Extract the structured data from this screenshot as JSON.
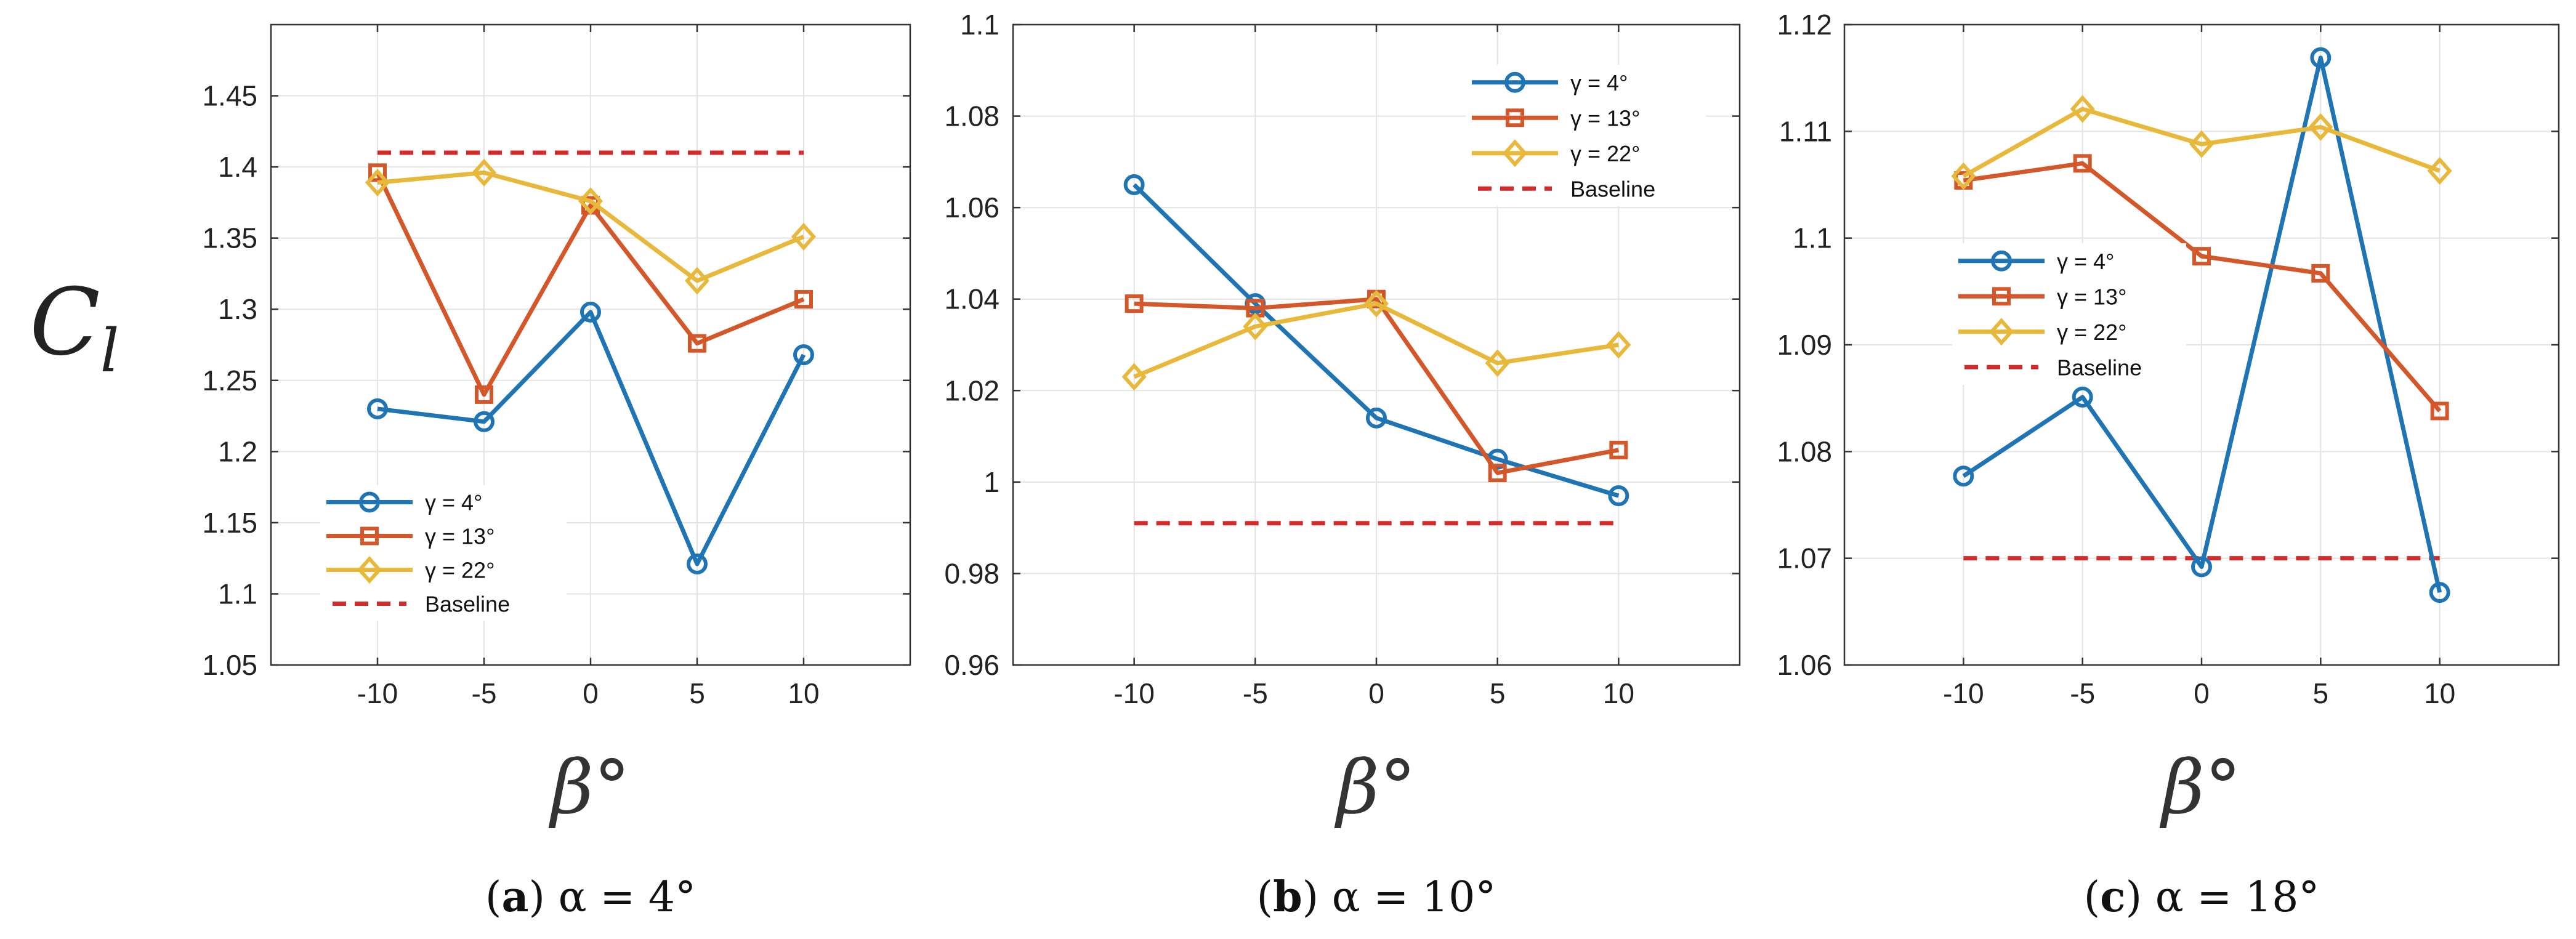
{
  "figure": {
    "ylabel_main": "C",
    "ylabel_sub": "l",
    "xlabel": "β°"
  },
  "colors": {
    "blue": "#1f74b4",
    "orange": "#d4572a",
    "yellow": "#e8b83a",
    "red": "#d42a2a"
  },
  "chart_data": [
    {
      "type": "line",
      "caption_letter": "a",
      "caption_text": "α = 4°",
      "categories": [
        "-10",
        "-5",
        "0",
        "5",
        "10"
      ],
      "x": [
        -10,
        -5,
        0,
        5,
        10
      ],
      "xlim": [
        -15,
        15
      ],
      "ylim": [
        1.05,
        1.5
      ],
      "yticks": [
        1.05,
        1.1,
        1.15,
        1.2,
        1.25,
        1.3,
        1.35,
        1.4,
        1.45
      ],
      "ytick_labels": [
        "1.05",
        "1.1",
        "1.15",
        "1.2",
        "1.25",
        "1.3",
        "1.35",
        "1.4",
        "1.45"
      ],
      "grid": true,
      "legend_placement": "bottom-left",
      "series": [
        {
          "name": "γ = 4°",
          "marker": "circle",
          "color": "#1f74b4",
          "values": [
            1.23,
            1.221,
            1.298,
            1.121,
            1.268
          ]
        },
        {
          "name": "γ = 13°",
          "marker": "square",
          "color": "#d4572a",
          "values": [
            1.396,
            1.24,
            1.373,
            1.276,
            1.307
          ]
        },
        {
          "name": "γ = 22°",
          "marker": "diamond",
          "color": "#e8b83a",
          "values": [
            1.389,
            1.396,
            1.376,
            1.32,
            1.351
          ]
        }
      ],
      "baseline": {
        "name": "Baseline",
        "color": "#d42a2a",
        "value": 1.41
      }
    },
    {
      "type": "line",
      "caption_letter": "b",
      "caption_text": "α  = 10°",
      "categories": [
        "-10",
        "-5",
        "0",
        "5",
        "10"
      ],
      "x": [
        -10,
        -5,
        0,
        5,
        10
      ],
      "xlim": [
        -15,
        15
      ],
      "ylim": [
        0.96,
        1.1
      ],
      "yticks": [
        0.96,
        0.98,
        1.0,
        1.02,
        1.04,
        1.06,
        1.08,
        1.1
      ],
      "ytick_labels": [
        "0.96",
        "0.98",
        "1",
        "1.02",
        "1.04",
        "1.06",
        "1.08",
        "1.1"
      ],
      "grid": true,
      "legend_placement": "top-right",
      "series": [
        {
          "name": "γ = 4°",
          "marker": "circle",
          "color": "#1f74b4",
          "values": [
            1.065,
            1.039,
            1.014,
            1.005,
            0.997
          ]
        },
        {
          "name": "γ = 13°",
          "marker": "square",
          "color": "#d4572a",
          "values": [
            1.039,
            1.038,
            1.04,
            1.002,
            1.007
          ]
        },
        {
          "name": "γ = 22°",
          "marker": "diamond",
          "color": "#e8b83a",
          "values": [
            1.023,
            1.034,
            1.039,
            1.026,
            1.03
          ]
        }
      ],
      "baseline": {
        "name": "Baseline",
        "color": "#d42a2a",
        "value": 0.991
      }
    },
    {
      "type": "line",
      "caption_letter": "c",
      "caption_text": "α  = 18°",
      "categories": [
        "-10",
        "-5",
        "0",
        "5",
        "10"
      ],
      "x": [
        -10,
        -5,
        0,
        5,
        10
      ],
      "xlim": [
        -15,
        15
      ],
      "ylim": [
        1.06,
        1.12
      ],
      "yticks": [
        1.06,
        1.07,
        1.08,
        1.09,
        1.1,
        1.11,
        1.12
      ],
      "ytick_labels": [
        "1.06",
        "1.07",
        "1.08",
        "1.09",
        "1.1",
        "1.11",
        "1.12"
      ],
      "grid": true,
      "legend_placement": "middle-left",
      "series": [
        {
          "name": "γ = 4°",
          "marker": "circle",
          "color": "#1f74b4",
          "values": [
            1.0777,
            1.0851,
            1.0692,
            1.1169,
            1.0668
          ]
        },
        {
          "name": "γ = 13°",
          "marker": "square",
          "color": "#d4572a",
          "values": [
            1.1054,
            1.107,
            1.0983,
            1.0967,
            1.0838
          ]
        },
        {
          "name": "γ = 22°",
          "marker": "diamond",
          "color": "#e8b83a",
          "values": [
            1.1058,
            1.1121,
            1.1088,
            1.1104,
            1.1063
          ]
        }
      ],
      "baseline": {
        "name": "Baseline",
        "color": "#d42a2a",
        "value": 1.07
      }
    }
  ]
}
